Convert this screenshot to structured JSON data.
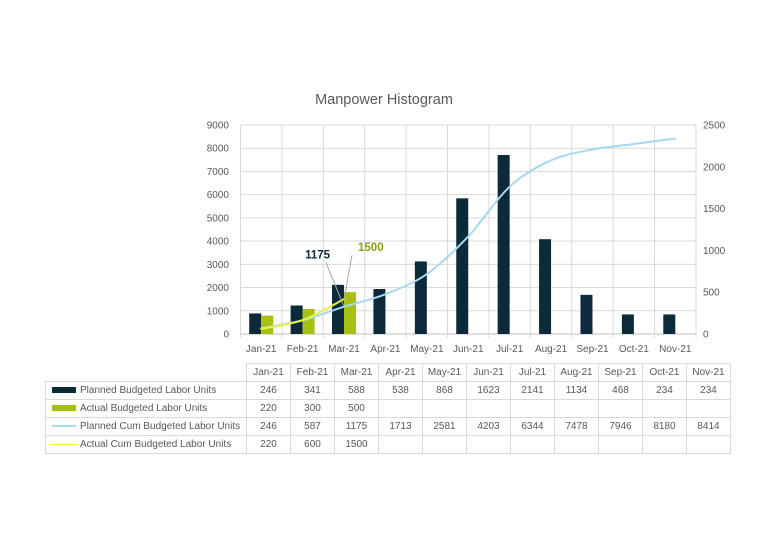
{
  "chart_data": {
    "type": "bar+line",
    "title": "Manpower Histogram",
    "categories": [
      "Jan-21",
      "Feb-21",
      "Mar-21",
      "Apr-21",
      "May-21",
      "Jun-21",
      "Jul-21",
      "Aug-21",
      "Sep-21",
      "Oct-21",
      "Nov-21"
    ],
    "left_axis": {
      "min": 0,
      "max": 9000,
      "ticks": [
        0,
        1000,
        2000,
        3000,
        4000,
        5000,
        6000,
        7000,
        8000,
        9000
      ],
      "used_by": "cumulative lines"
    },
    "right_axis": {
      "min": 0,
      "max": 2500,
      "ticks": [
        0,
        500,
        1000,
        1500,
        2000,
        2500
      ],
      "used_by": "monthly bars"
    },
    "grid": true,
    "legend_position": "data-table",
    "series": [
      {
        "name": "Planned Budgeted Labor Units",
        "kind": "bar",
        "axis": "right",
        "color": "#0d2a3a",
        "values": [
          246,
          341,
          588,
          538,
          868,
          1623,
          2141,
          1134,
          468,
          234,
          234
        ]
      },
      {
        "name": "Actual Budgeted Labor Units",
        "kind": "bar",
        "axis": "right",
        "color": "#a8c012",
        "values": [
          220,
          300,
          500,
          null,
          null,
          null,
          null,
          null,
          null,
          null,
          null
        ]
      },
      {
        "name": "Planned Cum Budgeted Labor Units",
        "kind": "line",
        "axis": "left",
        "color": "#a6d9f0",
        "values": [
          246,
          587,
          1175,
          1713,
          2581,
          4203,
          6344,
          7478,
          7946,
          8180,
          8414
        ]
      },
      {
        "name": "Actual Cum Budgeted Labor Units",
        "kind": "line",
        "axis": "left",
        "color": "#e6f542",
        "values": [
          220,
          600,
          1500,
          null,
          null,
          null,
          null,
          null,
          null,
          null,
          null
        ]
      }
    ],
    "annotations": [
      {
        "text": "1175",
        "series": "Planned Cum Budgeted Labor Units",
        "category": "Mar-21",
        "color": "#0d2a3a"
      },
      {
        "text": "1500",
        "series": "Actual Cum Budgeted Labor Units",
        "category": "Mar-21",
        "color": "#8aa10f"
      }
    ]
  },
  "table": {
    "header": [
      "Jan-21",
      "Feb-21",
      "Mar-21",
      "Apr-21",
      "May-21",
      "Jun-21",
      "Jul-21",
      "Aug-21",
      "Sep-21",
      "Oct-21",
      "Nov-21"
    ],
    "rows": [
      {
        "label": "Planned Budgeted Labor Units",
        "key": "bar",
        "color": "#0d2a3a",
        "cells": [
          "246",
          "341",
          "588",
          "538",
          "868",
          "1623",
          "2141",
          "1134",
          "468",
          "234",
          "234"
        ]
      },
      {
        "label": "Actual Budgeted Labor Units",
        "key": "bar",
        "color": "#a8c012",
        "cells": [
          "220",
          "300",
          "500",
          "",
          "",
          "",
          "",
          "",
          "",
          "",
          ""
        ]
      },
      {
        "label": "Planned Cum Budgeted Labor Units",
        "key": "line",
        "color": "#a6d9f0",
        "cells": [
          "246",
          "587",
          "1175",
          "1713",
          "2581",
          "4203",
          "6344",
          "7478",
          "7946",
          "8180",
          "8414"
        ]
      },
      {
        "label": "Actual Cum Budgeted Labor Units",
        "key": "line",
        "color": "#e6f542",
        "cells": [
          "220",
          "600",
          "1500",
          "",
          "",
          "",
          "",
          "",
          "",
          "",
          ""
        ]
      }
    ]
  }
}
